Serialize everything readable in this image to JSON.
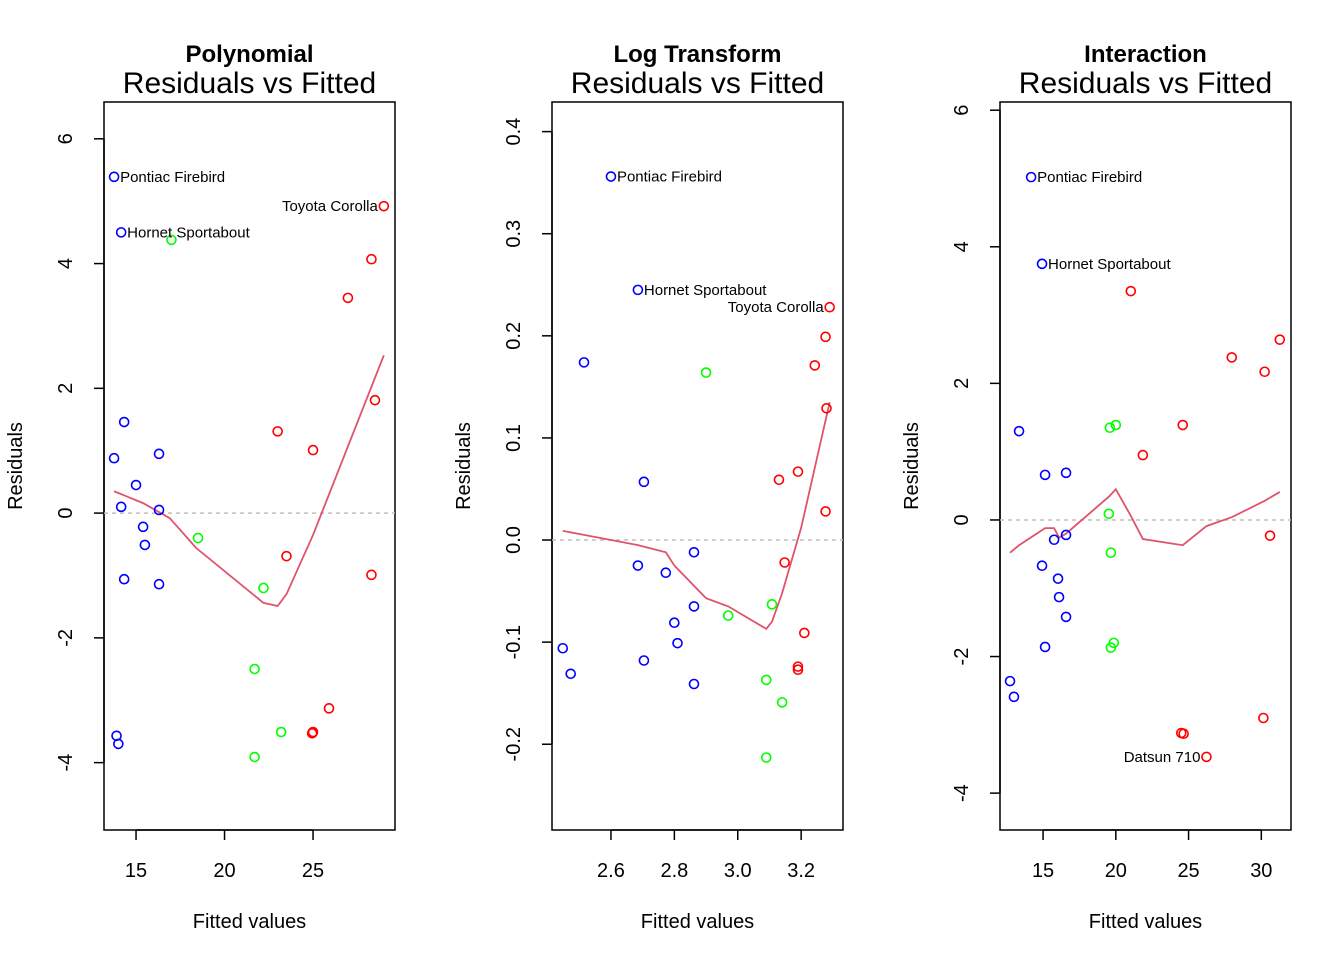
{
  "chart_data": [
    {
      "type": "scatter",
      "title": "Polynomial",
      "subtitle": "Residuals vs Fitted",
      "xlabel": "Fitted values",
      "ylabel": "Residuals",
      "xlim": [
        13.19,
        29.63
      ],
      "ylim": [
        -5.08,
        6.59
      ],
      "xticks": [
        15,
        20,
        25
      ],
      "yticks": [
        -4,
        -2,
        0,
        2,
        4,
        6
      ],
      "reference_line": 0,
      "points": {
        "blue": [
          [
            13.76,
            5.39
          ],
          [
            14.16,
            4.5
          ],
          [
            14.33,
            1.46
          ],
          [
            13.76,
            0.88
          ],
          [
            16.3,
            0.95
          ],
          [
            15.0,
            0.45
          ],
          [
            14.16,
            0.1
          ],
          [
            16.3,
            0.05
          ],
          [
            15.4,
            -0.22
          ],
          [
            15.5,
            -0.51
          ],
          [
            14.33,
            -1.06
          ],
          [
            16.3,
            -1.14
          ],
          [
            13.9,
            -3.57
          ],
          [
            14.0,
            -3.7
          ]
        ],
        "green": [
          [
            17.0,
            4.38
          ],
          [
            18.5,
            -0.4
          ],
          [
            22.2,
            -1.2
          ],
          [
            21.7,
            -2.5
          ],
          [
            23.2,
            -3.51
          ],
          [
            21.7,
            -3.91
          ]
        ],
        "red": [
          [
            29.0,
            4.92
          ],
          [
            28.3,
            4.07
          ],
          [
            26.97,
            3.45
          ],
          [
            28.5,
            1.81
          ],
          [
            23.0,
            1.31
          ],
          [
            25.0,
            1.01
          ],
          [
            23.5,
            -0.69
          ],
          [
            28.3,
            -0.99
          ],
          [
            25.9,
            -3.13
          ],
          [
            25.0,
            -3.51
          ],
          [
            24.95,
            -3.53
          ]
        ]
      },
      "smooth": [
        [
          13.76,
          0.35
        ],
        [
          15.4,
          0.16
        ],
        [
          16.9,
          -0.08
        ],
        [
          18.4,
          -0.56
        ],
        [
          22.2,
          -1.44
        ],
        [
          23.0,
          -1.49
        ],
        [
          23.5,
          -1.3
        ],
        [
          25.0,
          -0.35
        ],
        [
          29.0,
          2.53
        ]
      ],
      "annotations": [
        {
          "text": "Pontiac Firebird",
          "x": 13.76,
          "y": 5.39,
          "side": "right"
        },
        {
          "text": "Hornet Sportabout",
          "x": 14.16,
          "y": 4.5,
          "side": "right"
        },
        {
          "text": "Toyota Corolla",
          "x": 29.0,
          "y": 4.92,
          "side": "left"
        }
      ]
    },
    {
      "type": "scatter",
      "title": "Log Transform",
      "subtitle": "Residuals vs Fitted",
      "xlabel": "Fitted values",
      "ylabel": "Residuals",
      "xlim": [
        2.414,
        3.332
      ],
      "ylim": [
        -0.284,
        0.429
      ],
      "xticks": [
        2.6,
        2.8,
        3.0,
        3.2
      ],
      "yticks": [
        -0.2,
        -0.1,
        0.0,
        0.1,
        0.2,
        0.3,
        0.4
      ],
      "reference_line": 0,
      "points": {
        "blue": [
          [
            2.6,
            0.356
          ],
          [
            2.685,
            0.245
          ],
          [
            2.515,
            0.174
          ],
          [
            2.704,
            0.057
          ],
          [
            2.862,
            -0.012
          ],
          [
            2.685,
            -0.025
          ],
          [
            2.773,
            -0.032
          ],
          [
            2.862,
            -0.065
          ],
          [
            2.8,
            -0.081
          ],
          [
            2.81,
            -0.101
          ],
          [
            2.704,
            -0.118
          ],
          [
            2.448,
            -0.106
          ],
          [
            2.473,
            -0.131
          ],
          [
            2.862,
            -0.141
          ]
        ],
        "green": [
          [
            2.9,
            0.164
          ],
          [
            3.108,
            -0.063
          ],
          [
            2.97,
            -0.074
          ],
          [
            3.09,
            -0.137
          ],
          [
            3.14,
            -0.159
          ],
          [
            3.09,
            -0.213
          ]
        ],
        "red": [
          [
            3.29,
            0.228
          ],
          [
            3.277,
            0.199
          ],
          [
            3.243,
            0.171
          ],
          [
            3.28,
            0.129
          ],
          [
            3.19,
            0.067
          ],
          [
            3.13,
            0.059
          ],
          [
            3.277,
            0.028
          ],
          [
            3.148,
            -0.022
          ],
          [
            3.21,
            -0.091
          ],
          [
            3.19,
            -0.124
          ],
          [
            3.19,
            -0.127
          ]
        ]
      },
      "smooth": [
        [
          2.448,
          0.009
        ],
        [
          2.515,
          0.005
        ],
        [
          2.685,
          -0.005
        ],
        [
          2.773,
          -0.012
        ],
        [
          2.8,
          -0.025
        ],
        [
          2.9,
          -0.057
        ],
        [
          2.97,
          -0.065
        ],
        [
          3.09,
          -0.087
        ],
        [
          3.108,
          -0.08
        ],
        [
          3.14,
          -0.052
        ],
        [
          3.2,
          0.012
        ],
        [
          3.29,
          0.135
        ]
      ],
      "annotations": [
        {
          "text": "Pontiac Firebird",
          "x": 2.6,
          "y": 0.356,
          "side": "right"
        },
        {
          "text": "Hornet Sportabout",
          "x": 2.685,
          "y": 0.245,
          "side": "right"
        },
        {
          "text": "Toyota Corolla",
          "x": 3.29,
          "y": 0.228,
          "side": "left"
        }
      ]
    },
    {
      "type": "scatter",
      "title": "Interaction",
      "subtitle": "Residuals vs Fitted",
      "xlabel": "Fitted values",
      "ylabel": "Residuals",
      "xlim": [
        12.04,
        32.04
      ],
      "ylim": [
        -4.54,
        6.12
      ],
      "xticks": [
        15,
        20,
        25,
        30
      ],
      "yticks": [
        -4,
        -2,
        0,
        2,
        4,
        6
      ],
      "reference_line": 0,
      "points": {
        "blue": [
          [
            14.18,
            5.02
          ],
          [
            14.93,
            3.75
          ],
          [
            13.35,
            1.3
          ],
          [
            15.14,
            0.66
          ],
          [
            16.58,
            0.69
          ],
          [
            15.76,
            -0.29
          ],
          [
            16.58,
            -0.22
          ],
          [
            14.93,
            -0.67
          ],
          [
            16.03,
            -0.86
          ],
          [
            16.1,
            -1.13
          ],
          [
            16.58,
            -1.42
          ],
          [
            15.14,
            -1.86
          ],
          [
            12.73,
            -2.36
          ],
          [
            13.0,
            -2.59
          ]
        ],
        "green": [
          [
            20.0,
            1.39
          ],
          [
            19.59,
            1.35
          ],
          [
            19.52,
            0.09
          ],
          [
            19.66,
            -0.48
          ],
          [
            19.86,
            -1.8
          ],
          [
            19.66,
            -1.87
          ]
        ],
        "red": [
          [
            21.03,
            3.35
          ],
          [
            31.27,
            2.64
          ],
          [
            27.97,
            2.38
          ],
          [
            30.23,
            2.17
          ],
          [
            24.6,
            1.39
          ],
          [
            21.86,
            0.95
          ],
          [
            30.6,
            -0.23
          ],
          [
            30.14,
            -2.9
          ],
          [
            24.5,
            -3.12
          ],
          [
            24.66,
            -3.13
          ],
          [
            26.23,
            -3.47
          ]
        ]
      },
      "smooth": [
        [
          12.73,
          -0.48
        ],
        [
          13.35,
          -0.37
        ],
        [
          15.14,
          -0.12
        ],
        [
          15.76,
          -0.12
        ],
        [
          16.1,
          -0.26
        ],
        [
          16.58,
          -0.2
        ],
        [
          19.52,
          0.34
        ],
        [
          20.0,
          0.45
        ],
        [
          21.03,
          0.06
        ],
        [
          21.86,
          -0.28
        ],
        [
          24.6,
          -0.37
        ],
        [
          26.23,
          -0.09
        ],
        [
          27.97,
          0.04
        ],
        [
          30.23,
          0.28
        ],
        [
          31.27,
          0.41
        ]
      ],
      "annotations": [
        {
          "text": "Pontiac Firebird",
          "x": 14.18,
          "y": 5.02,
          "side": "right"
        },
        {
          "text": "Hornet Sportabout",
          "x": 14.93,
          "y": 3.75,
          "side": "right"
        },
        {
          "text": "Datsun 710",
          "x": 26.23,
          "y": -3.47,
          "side": "left"
        }
      ]
    }
  ],
  "colors": {
    "blue": "#0000FF",
    "green": "#00FF00",
    "red": "#FF0000",
    "smooth": "#DF536B",
    "reference": "#BEBEBE",
    "axis": "#000000"
  }
}
